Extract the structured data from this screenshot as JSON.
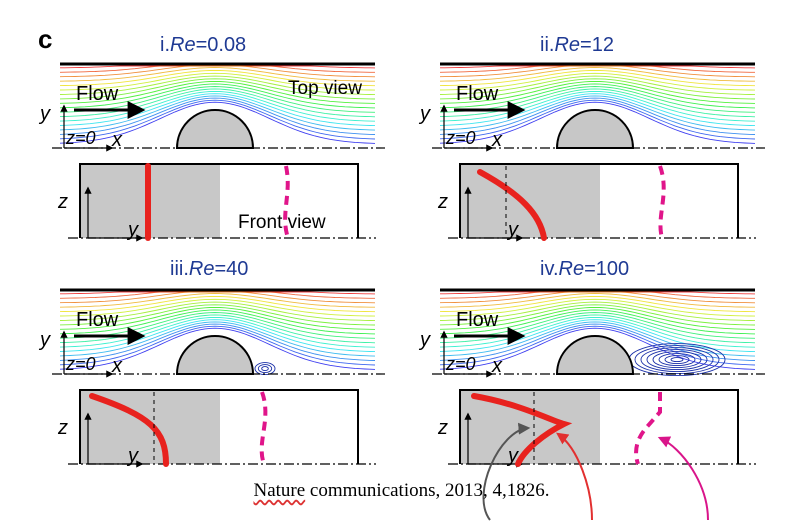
{
  "figure": {
    "panel_letter": "c",
    "panels": [
      {
        "index_label": "i.",
        "re_symbol": "Re",
        "re_value": "=0.08"
      },
      {
        "index_label": "ii.",
        "re_symbol": "Re",
        "re_value": "=12"
      },
      {
        "index_label": "iii.",
        "re_symbol": "Re",
        "re_value": "=40"
      },
      {
        "index_label": "iv.",
        "re_symbol": "Re",
        "re_value": "=100"
      }
    ],
    "labels": {
      "flow": "Flow",
      "top_view": "Top view",
      "front_view": "Front view",
      "y": "y",
      "z": "z",
      "x": "x",
      "z0": "z=0"
    },
    "colors": {
      "title": "#1f3a93",
      "solid_profile": "#e8221e",
      "dashed_profile": "#e0158a",
      "gray_region": "#c8c8c8",
      "annotation_gray": "#555555",
      "annotation_red": "#e23030",
      "annotation_magenta": "#d9158a"
    }
  },
  "citation": {
    "journal_first": "Nature",
    "journal_rest": " communications,",
    "details": " 2013, 4,1826."
  }
}
